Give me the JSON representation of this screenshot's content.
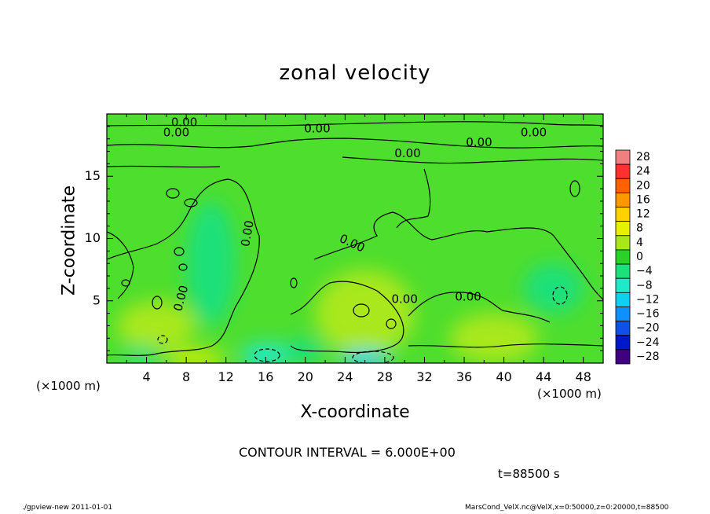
{
  "chart_data": {
    "type": "heatmap",
    "title": "zonal velocity",
    "xlabel": "X-coordinate",
    "ylabel": "Z-coordinate",
    "x_unit_label": "(×1000 m)",
    "xlim": [
      0,
      50
    ],
    "ylim": [
      0,
      20
    ],
    "x_ticks": [
      4,
      8,
      12,
      16,
      20,
      24,
      28,
      32,
      36,
      40,
      44,
      48
    ],
    "y_ticks": [
      5,
      10,
      15
    ],
    "contour_label": "0.00",
    "contour_labels": [
      {
        "text": "0.00",
        "x": 7.8,
        "y": 19.3,
        "rotate": 0
      },
      {
        "text": "0.00",
        "x": 7.0,
        "y": 18.5,
        "rotate": 0
      },
      {
        "text": "0.00",
        "x": 21.2,
        "y": 18.8,
        "rotate": 0
      },
      {
        "text": "0.00",
        "x": 43.0,
        "y": 18.5,
        "rotate": 0
      },
      {
        "text": "0.00",
        "x": 37.5,
        "y": 17.7,
        "rotate": 0
      },
      {
        "text": "0.00",
        "x": 30.3,
        "y": 16.8,
        "rotate": 0
      },
      {
        "text": "0.00",
        "x": 14.2,
        "y": 10.4,
        "rotate": -80
      },
      {
        "text": "0.00",
        "x": 24.7,
        "y": 9.6,
        "rotate": 25
      },
      {
        "text": "0.00",
        "x": 7.5,
        "y": 5.2,
        "rotate": -75
      },
      {
        "text": "0.00",
        "x": 30.0,
        "y": 5.1,
        "rotate": 0
      },
      {
        "text": "0.00",
        "x": 36.4,
        "y": 5.3,
        "rotate": 0
      }
    ],
    "contour_interval_text": "CONTOUR INTERVAL = 6.000E+00",
    "time_text": "t=88500 s",
    "colorbar": {
      "levels": [
        "28",
        "24",
        "20",
        "16",
        "12",
        "8",
        "4",
        "0",
        "−4",
        "−8",
        "−12",
        "−16",
        "−20",
        "−24",
        "−28"
      ],
      "colors": [
        "#f08080",
        "#ff3030",
        "#ff6000",
        "#ff9800",
        "#ffd200",
        "#e8f000",
        "#a8e81a",
        "#28d228",
        "#1ee07a",
        "#20e8c8",
        "#10d0f0",
        "#1090ff",
        "#1050e8",
        "#0018c8",
        "#400080"
      ]
    },
    "field_regions": [
      {
        "kind": "strong-positive",
        "x": 9.0,
        "y": 0.4,
        "rx": 3.0,
        "ry": 0.6,
        "color": "#e8f000"
      },
      {
        "kind": "positive",
        "x": 26.0,
        "y": 4.0,
        "rx": 5.0,
        "ry": 3.5,
        "color": "#a8e81a"
      },
      {
        "kind": "positive",
        "x": 5.0,
        "y": 3.0,
        "rx": 4.0,
        "ry": 2.0,
        "color": "#a8e81a"
      },
      {
        "kind": "positive",
        "x": 39.0,
        "y": 2.0,
        "rx": 4.5,
        "ry": 2.0,
        "color": "#a8e81a"
      },
      {
        "kind": "negative",
        "x": 10.5,
        "y": 8.0,
        "rx": 2.5,
        "ry": 5.0,
        "color": "#1ee07a"
      },
      {
        "kind": "negative",
        "x": 45.0,
        "y": 6.0,
        "rx": 3.0,
        "ry": 2.0,
        "color": "#1ee07a"
      },
      {
        "kind": "strong-negative",
        "x": 26.0,
        "y": 0.3,
        "rx": 2.5,
        "ry": 0.7,
        "color": "#10d0f0"
      },
      {
        "kind": "negative",
        "x": 16.0,
        "y": 0.6,
        "rx": 2.5,
        "ry": 1.0,
        "color": "#20e8c8"
      },
      {
        "kind": "negative",
        "x": 20.0,
        "y": 1.0,
        "rx": 2.0,
        "ry": 1.0,
        "color": "#1ee07a"
      },
      {
        "kind": "negative",
        "x": 3.5,
        "y": 0.6,
        "rx": 2.0,
        "ry": 0.8,
        "color": "#1ee07a"
      }
    ],
    "grid": false,
    "legend": "right colorbar"
  },
  "footer": {
    "left": "./gpview-new   2011-01-01",
    "right": "MarsCond_VelX.nc@VelX,x=0:50000,z=0:20000,t=88500"
  }
}
